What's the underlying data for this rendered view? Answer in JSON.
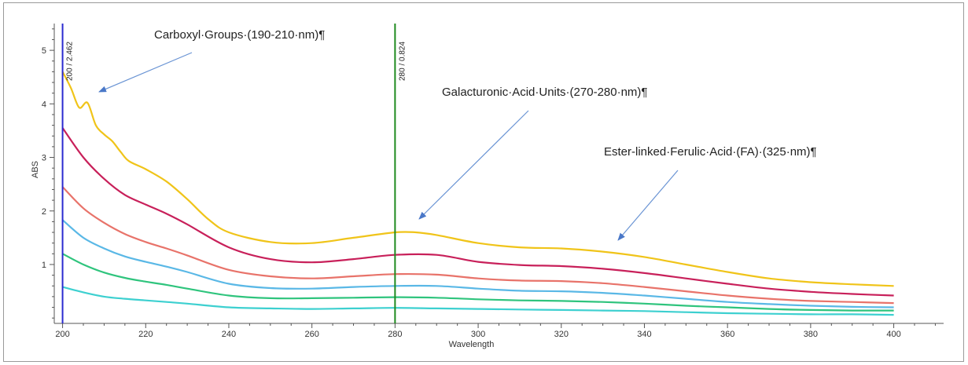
{
  "chart_data": {
    "type": "line",
    "title": "",
    "xlabel": "Wavelength",
    "ylabel": "ABS",
    "xlim": [
      198,
      412
    ],
    "ylim": [
      -0.1,
      5.5
    ],
    "xticks": [
      200,
      220,
      240,
      260,
      280,
      300,
      320,
      340,
      360,
      380,
      400
    ],
    "yticks": [
      1,
      2,
      3,
      4,
      5
    ],
    "grid": false,
    "legend": "none",
    "markers": [
      {
        "x": 200,
        "label": "200 / 2.462",
        "color": "#2a2ad0"
      },
      {
        "x": 280,
        "label": "280 / 0.824",
        "color": "#1f8a1f"
      }
    ],
    "annotations": [
      {
        "text": "Carboxyl·Groups·(190-210·nm)¶"
      },
      {
        "text": "Galacturonic·Acid·Units·(270-280·nm)¶"
      },
      {
        "text": "Ester-linked·Ferulic·Acid·(FA)·(325·nm)¶"
      }
    ],
    "series": [
      {
        "color": "#f0c419",
        "x": [
          200,
          202,
          204,
          206,
          208,
          210,
          212,
          214,
          216,
          220,
          225,
          230,
          235,
          240,
          250,
          260,
          270,
          280,
          285,
          290,
          300,
          310,
          320,
          330,
          340,
          350,
          360,
          370,
          380,
          390,
          400
        ],
        "y": [
          4.6,
          4.3,
          3.93,
          4.02,
          3.6,
          3.43,
          3.3,
          3.1,
          2.93,
          2.78,
          2.55,
          2.22,
          1.85,
          1.6,
          1.42,
          1.4,
          1.5,
          1.6,
          1.6,
          1.55,
          1.4,
          1.32,
          1.3,
          1.24,
          1.14,
          1.0,
          0.86,
          0.74,
          0.67,
          0.63,
          0.6
        ]
      },
      {
        "color": "#c8205a",
        "x": [
          200,
          205,
          210,
          215,
          220,
          225,
          230,
          240,
          250,
          260,
          270,
          280,
          290,
          300,
          310,
          320,
          330,
          340,
          350,
          360,
          370,
          380,
          390,
          400
        ],
        "y": [
          3.55,
          3.0,
          2.6,
          2.3,
          2.12,
          1.95,
          1.75,
          1.32,
          1.1,
          1.04,
          1.1,
          1.18,
          1.18,
          1.05,
          0.99,
          0.97,
          0.92,
          0.84,
          0.74,
          0.64,
          0.55,
          0.49,
          0.45,
          0.42
        ]
      },
      {
        "color": "#e8736a",
        "x": [
          200,
          205,
          210,
          215,
          220,
          225,
          230,
          240,
          250,
          260,
          270,
          280,
          290,
          300,
          310,
          320,
          330,
          340,
          350,
          360,
          370,
          380,
          390,
          400
        ],
        "y": [
          2.45,
          2.05,
          1.78,
          1.57,
          1.42,
          1.3,
          1.17,
          0.9,
          0.78,
          0.74,
          0.78,
          0.82,
          0.81,
          0.74,
          0.7,
          0.69,
          0.65,
          0.58,
          0.5,
          0.42,
          0.36,
          0.32,
          0.3,
          0.28
        ]
      },
      {
        "color": "#5ab8e6",
        "x": [
          200,
          205,
          210,
          215,
          220,
          225,
          230,
          240,
          250,
          260,
          270,
          280,
          290,
          300,
          310,
          320,
          330,
          340,
          350,
          360,
          370,
          380,
          390,
          400
        ],
        "y": [
          1.83,
          1.5,
          1.3,
          1.15,
          1.05,
          0.96,
          0.86,
          0.64,
          0.56,
          0.55,
          0.58,
          0.6,
          0.6,
          0.55,
          0.51,
          0.5,
          0.47,
          0.42,
          0.36,
          0.3,
          0.26,
          0.23,
          0.21,
          0.2
        ]
      },
      {
        "color": "#2fc47d",
        "x": [
          200,
          205,
          210,
          215,
          220,
          225,
          230,
          240,
          250,
          260,
          270,
          280,
          290,
          300,
          310,
          320,
          330,
          340,
          350,
          360,
          370,
          380,
          390,
          400
        ],
        "y": [
          1.2,
          1.0,
          0.85,
          0.75,
          0.68,
          0.62,
          0.55,
          0.42,
          0.37,
          0.37,
          0.38,
          0.39,
          0.38,
          0.35,
          0.33,
          0.32,
          0.3,
          0.27,
          0.23,
          0.2,
          0.17,
          0.15,
          0.14,
          0.14
        ]
      },
      {
        "color": "#3dd0d0",
        "x": [
          200,
          205,
          210,
          215,
          220,
          225,
          230,
          240,
          250,
          260,
          270,
          280,
          290,
          300,
          310,
          320,
          330,
          340,
          350,
          360,
          370,
          380,
          390,
          400
        ],
        "y": [
          0.58,
          0.48,
          0.4,
          0.36,
          0.33,
          0.3,
          0.27,
          0.2,
          0.18,
          0.17,
          0.18,
          0.19,
          0.18,
          0.17,
          0.16,
          0.15,
          0.14,
          0.13,
          0.11,
          0.09,
          0.08,
          0.07,
          0.07,
          0.06
        ]
      }
    ]
  }
}
